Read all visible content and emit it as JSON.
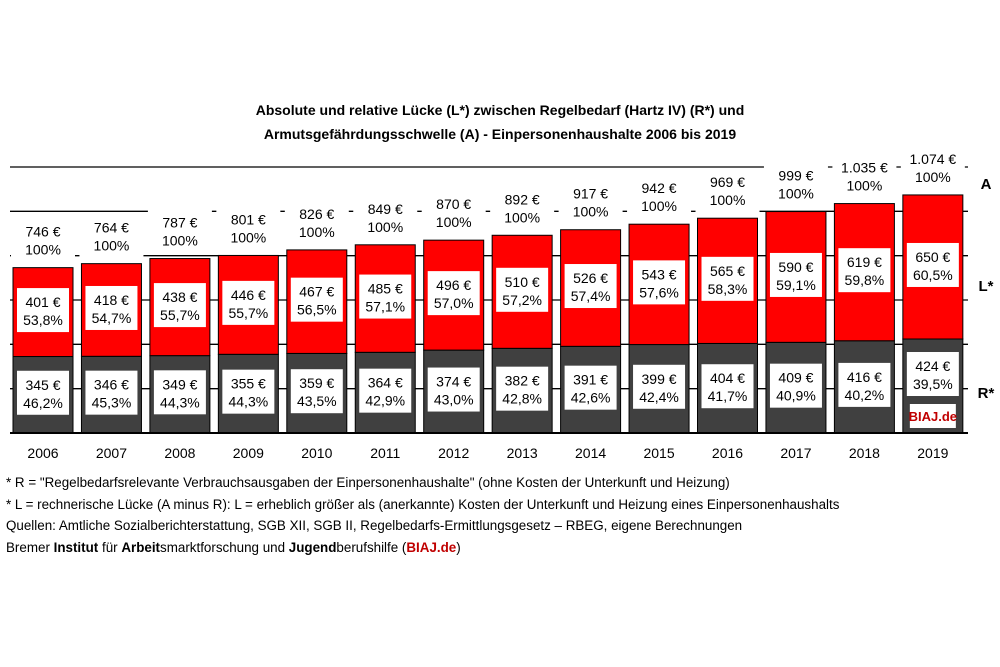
{
  "chart_data": {
    "type": "bar",
    "stacked": true,
    "title": [
      "Absolute und relative Lücke (L*) zwischen Regelbedarf (Hartz IV) (R*) und",
      "Armutsgefährdungsschwelle (A) - Einpersonenhaushalte 2006 bis 2019"
    ],
    "categories": [
      "2006",
      "2007",
      "2008",
      "2009",
      "2010",
      "2011",
      "2012",
      "2013",
      "2014",
      "2015",
      "2016",
      "2017",
      "2018",
      "2019"
    ],
    "series": [
      {
        "name": "R*",
        "color": "#404040",
        "values": [
          345,
          346,
          349,
          355,
          359,
          364,
          374,
          382,
          391,
          399,
          404,
          409,
          416,
          424
        ],
        "pct": [
          "46,2%",
          "45,3%",
          "44,3%",
          "44,3%",
          "43,5%",
          "42,9%",
          "43,0%",
          "42,8%",
          "42,6%",
          "42,4%",
          "41,7%",
          "40,9%",
          "40,2%",
          "39,5%"
        ]
      },
      {
        "name": "L*",
        "color": "#ff0000",
        "values": [
          401,
          418,
          438,
          446,
          467,
          485,
          496,
          510,
          526,
          543,
          565,
          590,
          619,
          650
        ],
        "pct": [
          "53,8%",
          "54,7%",
          "55,7%",
          "55,7%",
          "56,5%",
          "57,1%",
          "57,0%",
          "57,2%",
          "57,4%",
          "57,6%",
          "58,3%",
          "59,1%",
          "59,8%",
          "60,5%"
        ]
      }
    ],
    "totals": {
      "name": "A",
      "values": [
        "746 €",
        "764 €",
        "787 €",
        "801 €",
        "826 €",
        "849 €",
        "870 €",
        "892 €",
        "917 €",
        "942 €",
        "969 €",
        "999 €",
        "1.035 €",
        "1.074 €"
      ],
      "pct": "100%"
    },
    "r_labels": [
      "345 €",
      "346 €",
      "349 €",
      "355 €",
      "359 €",
      "364 €",
      "374 €",
      "382 €",
      "391 €",
      "399 €",
      "404 €",
      "409 €",
      "416 €",
      "424 €"
    ],
    "l_labels": [
      "401 €",
      "418 €",
      "438 €",
      "446 €",
      "467 €",
      "485 €",
      "496 €",
      "510 €",
      "526 €",
      "543 €",
      "565 €",
      "590 €",
      "619 €",
      "650 €"
    ],
    "a_values": [
      746,
      764,
      787,
      801,
      826,
      849,
      870,
      892,
      917,
      942,
      969,
      999,
      1035,
      1074
    ],
    "ylim": [
      0,
      1200
    ],
    "grid": true,
    "grid_step": 200,
    "y_axis_labels_shown": false,
    "right_labels": [
      "A",
      "L*",
      "R*"
    ],
    "watermark": "BIAJ.de"
  },
  "footer": {
    "line1": "* R = \"Regelbedarfsrelevante  Verbrauchsausgaben  der Einpersonenhaushalte\"  (ohne Kosten der Unterkunft  und Heizung)",
    "line2": "* L = rechnerische Lücke (A minus  R): L = erheblich größer als (anerkannte) Kosten  der Unterkunft  und Heizung  eines Einpersonenhaushalts",
    "line3": "Quellen:  Amtliche Sozialberichterstattung,  SGB XII, SGB II, Regelbedarfs-Ermittlungsgesetz  – RBEG, eigene Berechnungen",
    "line4_a": "Bremer ",
    "line4_b": "Institut",
    "line4_c": " für ",
    "line4_d": "Arbeit",
    "line4_e": "smarktforschung  und ",
    "line4_f": "Jugend",
    "line4_g": "berufshilfe (",
    "line4_h": "BIAJ.de",
    "line4_i": ")"
  }
}
